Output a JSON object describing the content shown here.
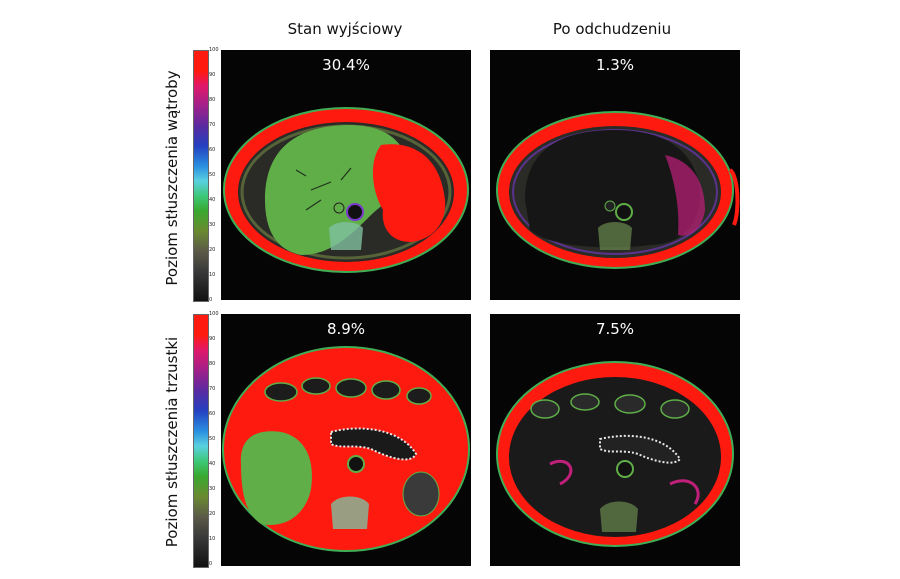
{
  "columns": {
    "baseline": "Stan wyjściowy",
    "after": "Po odchudzeniu"
  },
  "rows": {
    "liver": "Poziom stłuszczenia wątroby",
    "pancreas": "Poziom stłuszczenia trzustki"
  },
  "colorbar": {
    "ticks": [
      "100",
      "90",
      "80",
      "70",
      "60",
      "50",
      "40",
      "30",
      "20",
      "10",
      "0"
    ]
  },
  "panels": {
    "liver_baseline": "30.4%",
    "liver_after": "1.3%",
    "pancreas_baseline": "8.9%",
    "pancreas_after": "7.5%"
  },
  "colors": {
    "fat": "#ff1a10",
    "liver_tissue": "#5fae48",
    "background": "#050505",
    "dark_tissue": "#1a1a1a",
    "interface": "#7a3ad0"
  }
}
